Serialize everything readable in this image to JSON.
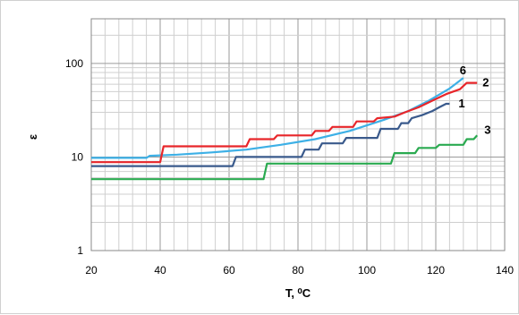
{
  "chart_data": {
    "type": "line",
    "title": "",
    "xlabel": "T, ⁰C",
    "ylabel": "ε",
    "xlim": [
      20,
      140
    ],
    "ylim": [
      1,
      300
    ],
    "yscale": "log",
    "grid": true,
    "x_ticks": [
      20,
      40,
      60,
      80,
      100,
      120,
      140
    ],
    "y_ticks": [
      1,
      10,
      100
    ],
    "x_tick_labels": [
      "20",
      "40",
      "60",
      "80",
      "100",
      "120",
      "140"
    ],
    "y_tick_labels": [
      "1",
      "10",
      "100"
    ],
    "series": [
      {
        "name": "6",
        "color": "#3db0e6",
        "points": [
          [
            20,
            9.8
          ],
          [
            36,
            9.8
          ],
          [
            37,
            10.3
          ],
          [
            45,
            10.6
          ],
          [
            55,
            11.2
          ],
          [
            65,
            12.0
          ],
          [
            75,
            13.5
          ],
          [
            85,
            15.5
          ],
          [
            95,
            19.0
          ],
          [
            105,
            25.0
          ],
          [
            112,
            31.0
          ],
          [
            118,
            40.0
          ],
          [
            124,
            54.0
          ],
          [
            128,
            70.0
          ]
        ]
      },
      {
        "name": "2",
        "color": "#e8262a",
        "points": [
          [
            20,
            8.8
          ],
          [
            40,
            8.8
          ],
          [
            41,
            13.0
          ],
          [
            65,
            13.0
          ],
          [
            66,
            15.5
          ],
          [
            73,
            15.5
          ],
          [
            74,
            17.0
          ],
          [
            84,
            17.0
          ],
          [
            85,
            19.0
          ],
          [
            89,
            19.0
          ],
          [
            90,
            21.0
          ],
          [
            96,
            21.0
          ],
          [
            97,
            24.0
          ],
          [
            102,
            24.0
          ],
          [
            103,
            26.0
          ],
          [
            108,
            27.0
          ],
          [
            111,
            30.0
          ],
          [
            115,
            34.0
          ],
          [
            119,
            40.0
          ],
          [
            123,
            47.0
          ],
          [
            127,
            53.0
          ],
          [
            129,
            62.0
          ],
          [
            132,
            62.0
          ]
        ]
      },
      {
        "name": "1",
        "color": "#3a5a8c",
        "points": [
          [
            20,
            8.0
          ],
          [
            61,
            8.0
          ],
          [
            62,
            10.0
          ],
          [
            81,
            10.0
          ],
          [
            82,
            12.0
          ],
          [
            86,
            12.0
          ],
          [
            87,
            14.0
          ],
          [
            93,
            14.0
          ],
          [
            94,
            16.0
          ],
          [
            103,
            16.0
          ],
          [
            104,
            20.0
          ],
          [
            109,
            20.0
          ],
          [
            110,
            23.0
          ],
          [
            112,
            23.0
          ],
          [
            113,
            26.0
          ],
          [
            116,
            28.0
          ],
          [
            119,
            31.0
          ],
          [
            121,
            34.0
          ],
          [
            123,
            37.0
          ],
          [
            124,
            37.0
          ]
        ]
      },
      {
        "name": "3",
        "color": "#2aaa50",
        "points": [
          [
            20,
            5.8
          ],
          [
            70,
            5.8
          ],
          [
            71,
            8.5
          ],
          [
            107,
            8.5
          ],
          [
            108,
            11.0
          ],
          [
            114,
            11.0
          ],
          [
            115,
            12.5
          ],
          [
            120,
            12.5
          ],
          [
            121,
            13.5
          ],
          [
            128,
            13.5
          ],
          [
            129,
            15.5
          ],
          [
            131,
            15.5
          ],
          [
            132,
            17.0
          ]
        ]
      }
    ],
    "series_labels": [
      "6",
      "2",
      "1",
      "3"
    ]
  }
}
